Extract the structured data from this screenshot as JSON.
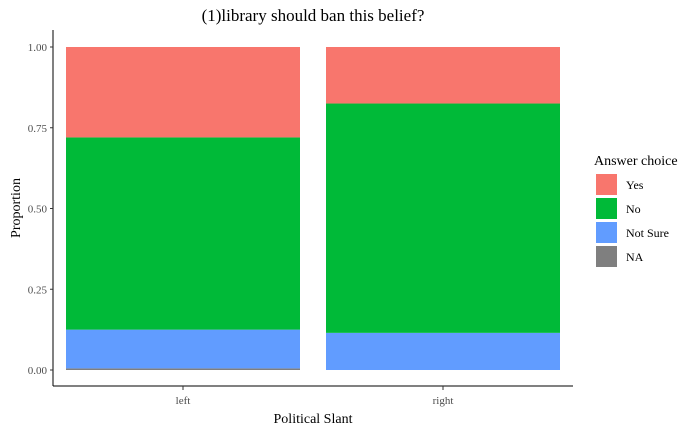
{
  "chart_data": {
    "type": "bar",
    "stacked": true,
    "title": "(1)library should ban this belief?",
    "xlabel": "Political Slant",
    "ylabel": "Proportion",
    "categories": [
      "left",
      "right"
    ],
    "ylim": [
      0,
      1
    ],
    "yticks": [
      "0.00",
      "0.25",
      "0.50",
      "0.75",
      "1.00"
    ],
    "grid": false,
    "legend": {
      "title": "Answer choice",
      "position": "right"
    },
    "series": [
      {
        "name": "NA",
        "color": "#7f7f7f",
        "values": [
          0.005,
          0.0
        ]
      },
      {
        "name": "Not Sure",
        "color": "#619cff",
        "values": [
          0.12,
          0.115
        ]
      },
      {
        "name": "No",
        "color": "#00ba38",
        "values": [
          0.595,
          0.71
        ]
      },
      {
        "name": "Yes",
        "color": "#f8766d",
        "values": [
          0.28,
          0.175
        ]
      }
    ],
    "legend_order": [
      "Yes",
      "No",
      "Not Sure",
      "NA"
    ]
  }
}
